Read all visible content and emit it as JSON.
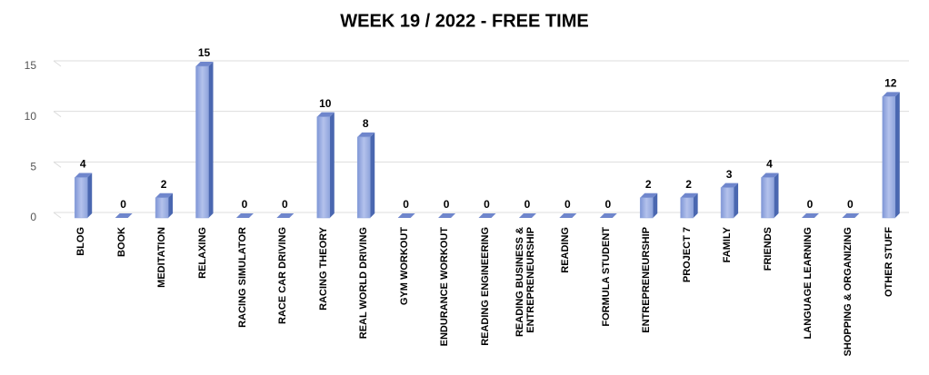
{
  "chart_data": {
    "type": "bar",
    "title": "WEEK 19 / 2022 - FREE TIME",
    "categories": [
      "BLOG",
      "BOOK",
      "MEDITATION",
      "RELAXING",
      "RACING SIMULATOR",
      "RACE CAR DRIVING",
      "RACING THEORY",
      "REAL WORLD DRIVING",
      "GYM WORKOUT",
      "ENDURANCE WORKOUT",
      "READING ENGINEERING",
      "READING BUSINESS & ENTREPRENEURSHIP",
      "READING",
      "FORMULA STUDENT",
      "ENTREPRENEURSHIP",
      "PROJECT 7",
      "FAMILY",
      "FRIENDS",
      "LANGUAGE LEARNING",
      "SHOPPING & ORGANIZING",
      "OTHER STUFF"
    ],
    "values": [
      4,
      0,
      2,
      15,
      0,
      0,
      10,
      8,
      0,
      0,
      0,
      0,
      0,
      0,
      2,
      2,
      3,
      4,
      0,
      0,
      12
    ],
    "color": "#8fa4dc",
    "ylim": [
      0,
      15
    ],
    "yticks": [
      0,
      5,
      10,
      15
    ],
    "grid": true
  }
}
